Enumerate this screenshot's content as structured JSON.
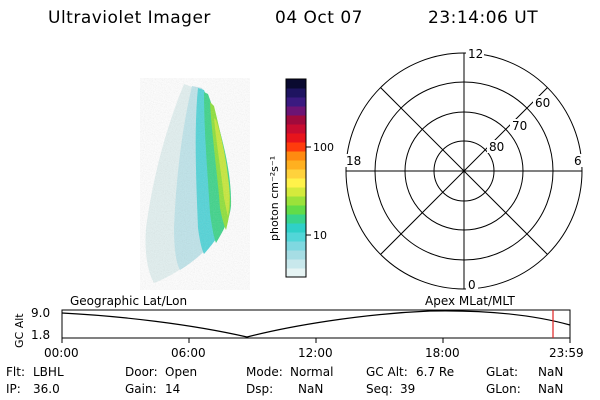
{
  "header": {
    "title": "Ultraviolet Imager",
    "date": "04 Oct 07",
    "time": "23:14:06 UT"
  },
  "colorbar": {
    "label": "photon cm⁻²s⁻¹",
    "ticks": [
      "100",
      "10"
    ],
    "colors": [
      "#e6f4f4",
      "#c8e8ec",
      "#a6dde4",
      "#7fd8e0",
      "#52d6d8",
      "#2fd0c8",
      "#38d48c",
      "#62dc48",
      "#9be23a",
      "#d4ea3c",
      "#fff24a",
      "#ffd23c",
      "#ffb020",
      "#ff8a10",
      "#ff3c0c",
      "#e8141c",
      "#c80c30",
      "#a00a3c",
      "#6c1474",
      "#3a1a80",
      "#1e1460",
      "#0a0a30"
    ]
  },
  "polar_plot": {
    "mlt_labels": {
      "top": "12",
      "bottom": "0",
      "left": "18",
      "right": "6"
    },
    "lat_labels": [
      "60",
      "70",
      "80"
    ]
  },
  "timeline": {
    "top_left_label": "Geographic Lat/Lon",
    "top_right_label": "Apex  MLat/MLT",
    "ylabel": "GC Alt",
    "y_ticks": [
      "9.0",
      "1.8"
    ],
    "x_ticks": [
      "00:00",
      "06:00",
      "12:00",
      "18:00",
      "23:59"
    ],
    "marker_color": "#e02020"
  },
  "info": {
    "row1": [
      {
        "label": "Flt:",
        "value": "LBHL"
      },
      {
        "label": "Door:",
        "value": "Open"
      },
      {
        "label": "Mode:",
        "value": "Normal"
      },
      {
        "label": "GC Alt:",
        "value": "6.7 Re"
      },
      {
        "label": "GLat:",
        "value": "NaN"
      }
    ],
    "row2": [
      {
        "label": "IP:",
        "value": "36.0"
      },
      {
        "label": "Gain:",
        "value": "14"
      },
      {
        "label": "Dsp:",
        "value": "NaN"
      },
      {
        "label": "Seq:",
        "value": "39"
      },
      {
        "label": "GLon:",
        "value": "NaN"
      }
    ]
  }
}
